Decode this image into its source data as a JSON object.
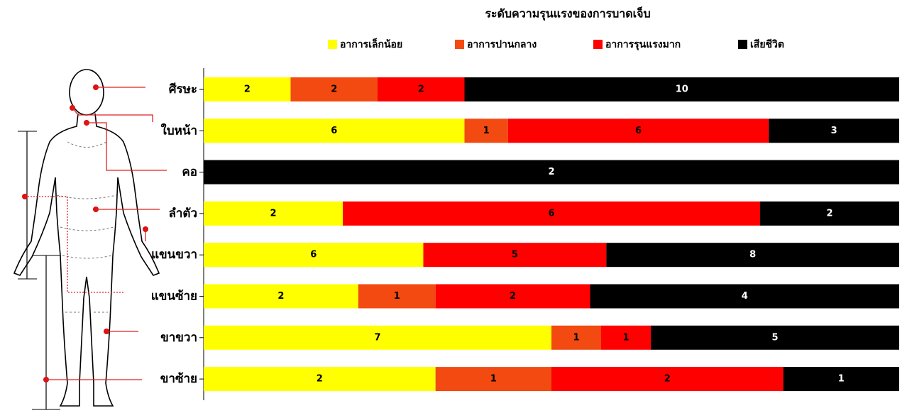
{
  "chart_data": {
    "type": "bar",
    "stacked": "percent",
    "orientation": "horizontal",
    "title": "ระดับความรุนแรงของการบาดเจ็บ",
    "categories": [
      "ศีรษะ",
      "ใบหน้า",
      "คอ",
      "ลำตัว",
      "แขนขวา",
      "แขนซ้าย",
      "ขาขวา",
      "ขาซ้าย"
    ],
    "series": [
      {
        "name": "อาการเล็กน้อย",
        "color": "#ffff00",
        "values": [
          2,
          6,
          null,
          2,
          6,
          2,
          7,
          2
        ]
      },
      {
        "name": "อาการปานกลาง",
        "color": "#f24a10",
        "values": [
          2,
          1,
          null,
          null,
          null,
          1,
          1,
          1
        ]
      },
      {
        "name": "อาการรุนแรงมาก",
        "color": "#ff0000",
        "values": [
          2,
          6,
          null,
          6,
          5,
          2,
          1,
          2
        ]
      },
      {
        "name": "เสียชีวิต",
        "color": "#000000",
        "values": [
          10,
          3,
          2,
          2,
          8,
          4,
          5,
          1
        ]
      }
    ],
    "legend": "top"
  }
}
